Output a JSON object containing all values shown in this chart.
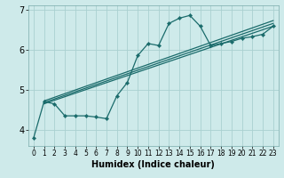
{
  "xlabel": "Humidex (Indice chaleur)",
  "bg_color": "#ceeaea",
  "grid_color": "#aad0d0",
  "line_color": "#1a6b6b",
  "xlim": [
    -0.5,
    23.5
  ],
  "ylim": [
    3.6,
    7.1
  ],
  "yticks": [
    4,
    5,
    6,
    7
  ],
  "xticks": [
    0,
    1,
    2,
    3,
    4,
    5,
    6,
    7,
    8,
    9,
    10,
    11,
    12,
    13,
    14,
    15,
    16,
    17,
    18,
    19,
    20,
    21,
    22,
    23
  ],
  "series1_x": [
    0,
    1,
    2,
    3,
    4,
    5,
    6,
    7,
    8,
    9,
    10,
    11,
    12,
    13,
    14,
    15,
    16,
    17,
    18,
    19,
    20,
    21,
    22,
    23
  ],
  "series1_y": [
    3.8,
    4.7,
    4.65,
    4.35,
    4.35,
    4.35,
    4.32,
    4.28,
    4.85,
    5.18,
    5.85,
    6.15,
    6.1,
    6.65,
    6.78,
    6.85,
    6.58,
    6.1,
    6.15,
    6.2,
    6.28,
    6.32,
    6.38,
    6.58
  ],
  "line2_x": [
    1,
    23
  ],
  "line2_y": [
    4.65,
    6.58
  ],
  "line3_x": [
    1,
    23
  ],
  "line3_y": [
    4.68,
    6.65
  ],
  "line4_x": [
    1,
    23
  ],
  "line4_y": [
    4.72,
    6.72
  ],
  "xlabel_fontsize": 7,
  "tick_fontsize": 5.5,
  "ytick_fontsize": 7,
  "linewidth": 0.9,
  "markersize": 2.2
}
